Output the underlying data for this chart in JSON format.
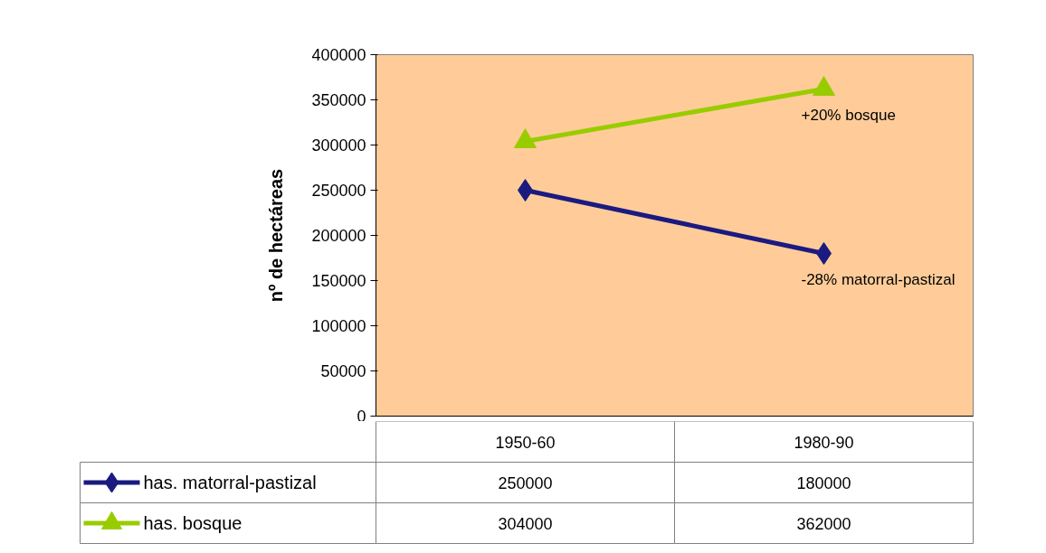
{
  "chart_data": {
    "type": "line",
    "ylabel": "nº de hectáreas",
    "categories": [
      "1950-60",
      "1980-90"
    ],
    "series": [
      {
        "name": "has. matorral-pastizal",
        "color": "#1a1a80",
        "marker": "diamond",
        "values": [
          250000,
          180000
        ]
      },
      {
        "name": "has. bosque",
        "color": "#99cc00",
        "marker": "triangle",
        "values": [
          304000,
          362000
        ]
      }
    ],
    "ylim": [
      0,
      400000
    ],
    "yticks": [
      0,
      50000,
      100000,
      150000,
      200000,
      250000,
      300000,
      350000,
      400000
    ],
    "data_labels": true,
    "legend": "bottom",
    "line_style": "solid",
    "annotations": [
      {
        "text": "+20% bosque",
        "x": "1980-90",
        "y": 362000
      },
      {
        "text": "-28% matorral-pastizal",
        "x": "1980-90",
        "y": 180000
      }
    ]
  }
}
